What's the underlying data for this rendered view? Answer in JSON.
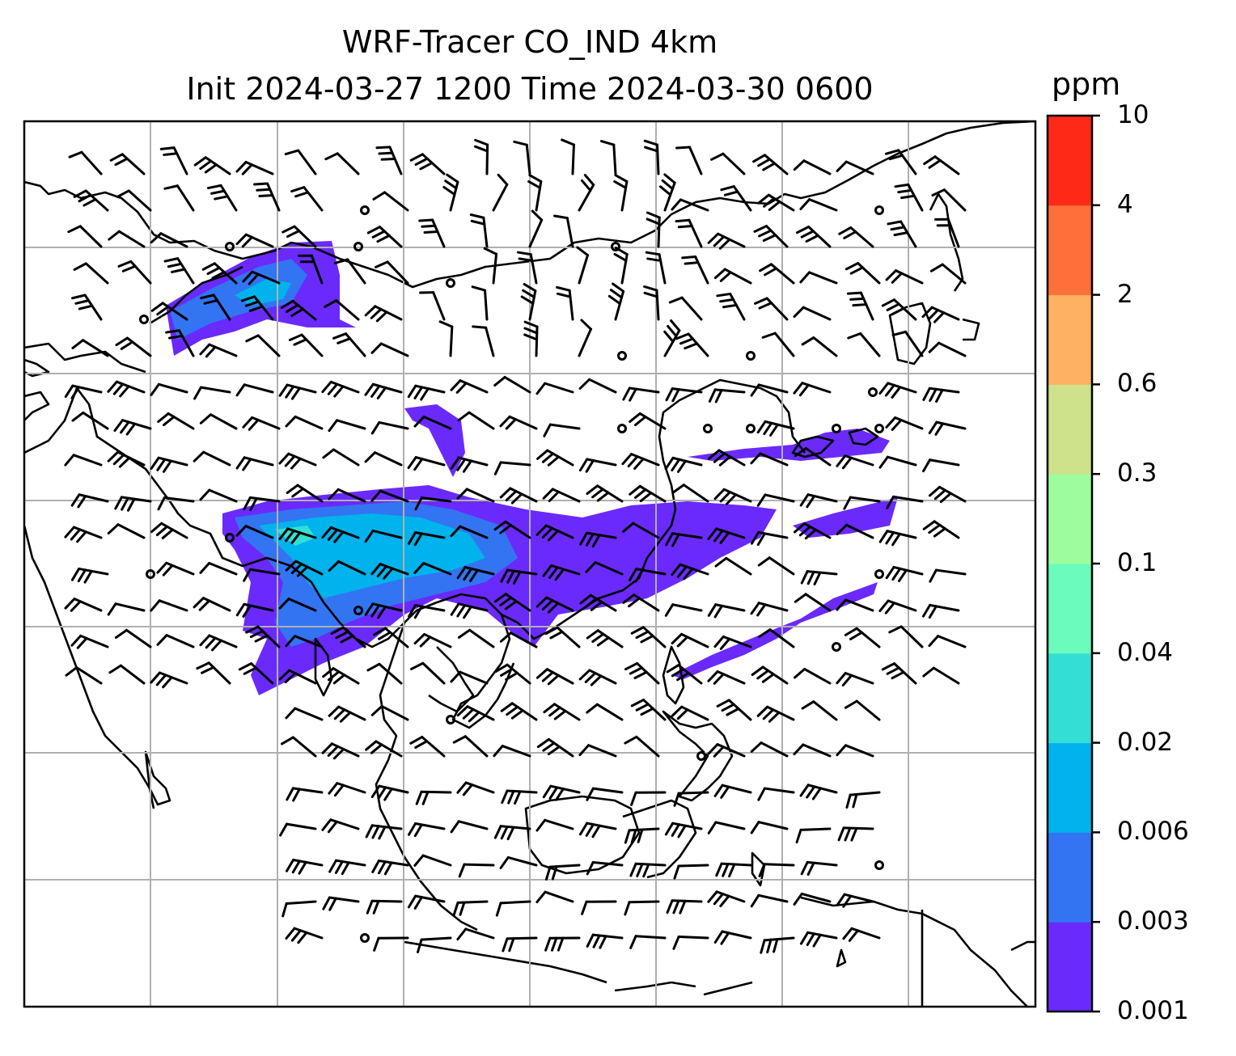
{
  "title": [
    "WRF-Tracer CO_IND 4km",
    "Init 2024-03-27 1200 Time 2024-03-30 0600"
  ],
  "colorbar": {
    "unit": "ppm",
    "levels": [
      "0.001",
      "0.003",
      "0.006",
      "0.02",
      "0.04",
      "0.1",
      "0.3",
      "0.6",
      "2",
      "4",
      "10"
    ],
    "colors": [
      "#6a2afc",
      "#3374f3",
      "#00b3ec",
      "#33dfd5",
      "#6afcbc",
      "#9dfc9c",
      "#cde28a",
      "#feb162",
      "#fe6f3a",
      "#fe2a17"
    ]
  },
  "map": {
    "land_outline_color": "#000000",
    "grid_color": "#b0b0b0",
    "plume_colors": {
      "low": "#6a2afc",
      "mid": "#3374f3",
      "high": "#00b3ec",
      "peak": "#33dfd5"
    }
  }
}
